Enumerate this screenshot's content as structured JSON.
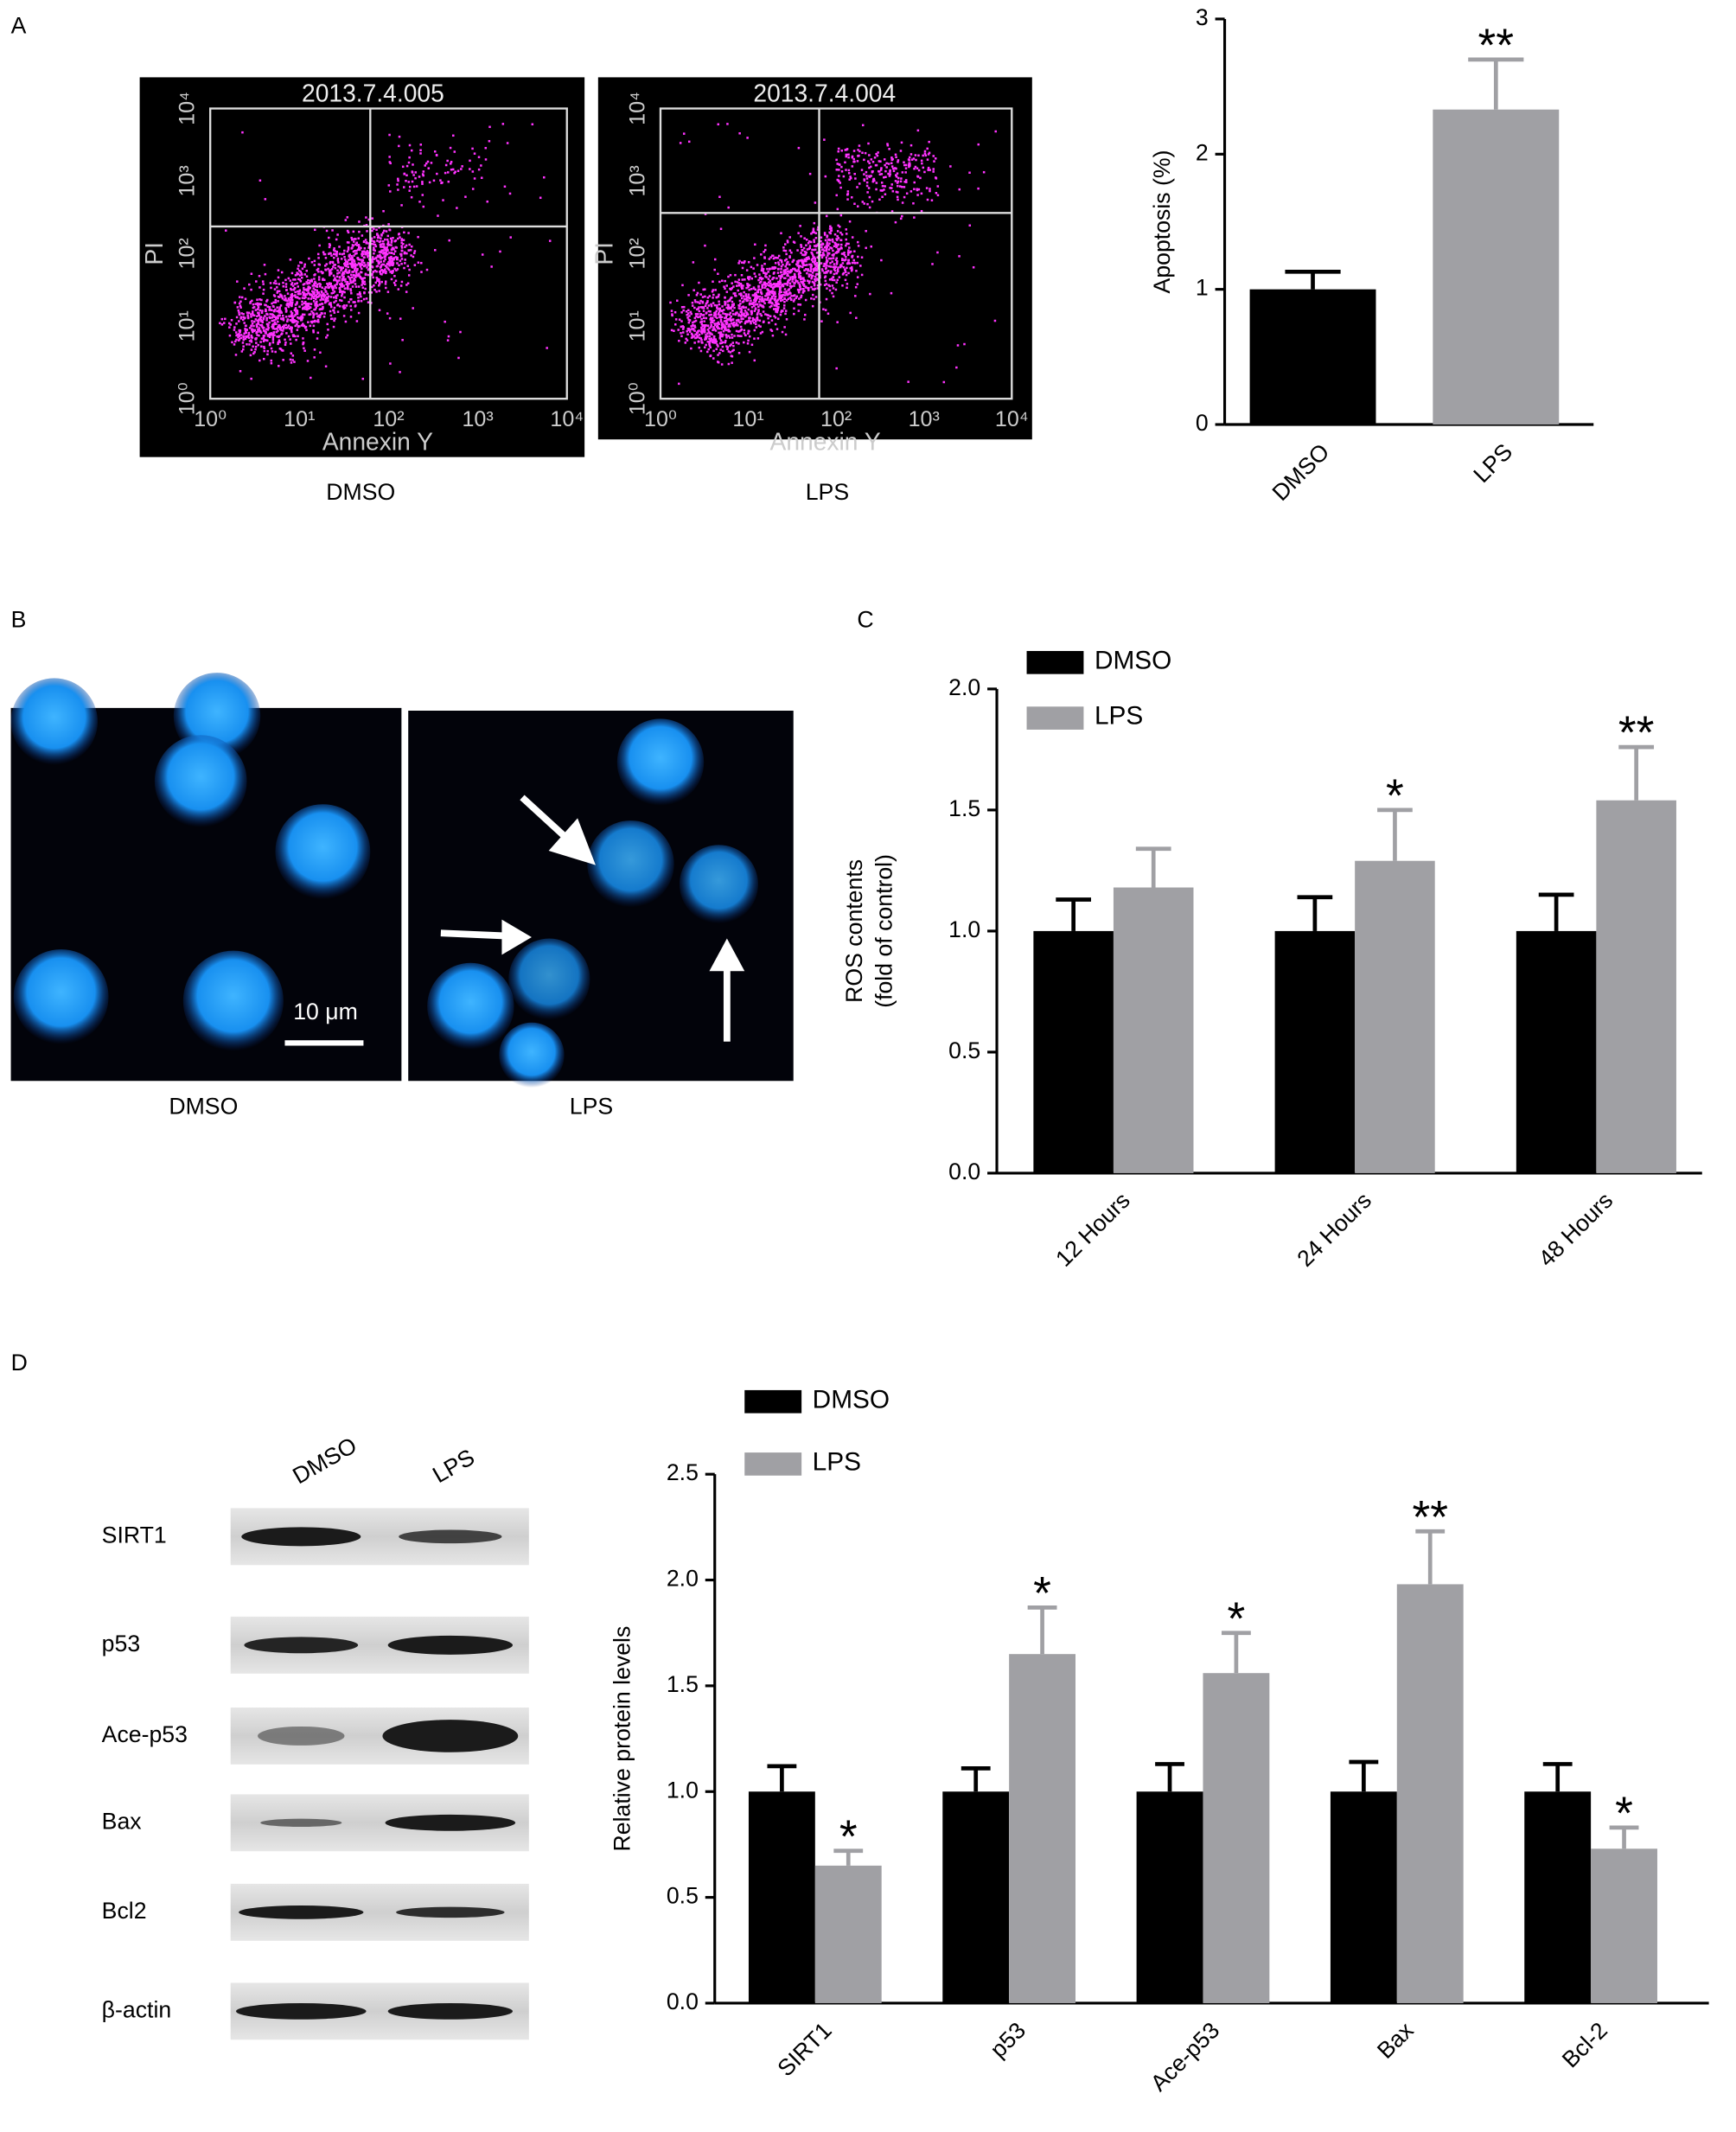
{
  "panel_labels": [
    "A",
    "B",
    "C",
    "D"
  ],
  "flow_cytometry": [
    {
      "title": "2013.7.4.005",
      "x_label": "Annexin Y",
      "y_label": "PI",
      "x_ticks": [
        "10⁰",
        "10¹",
        "10²",
        "10³",
        "10⁴"
      ],
      "y_ticks": [
        "10⁰",
        "10¹",
        "10²",
        "10³",
        "10⁴"
      ],
      "caption": "DMSO"
    },
    {
      "title": "2013.7.4.004",
      "x_label": "Annexin Y",
      "y_label": "PI",
      "x_ticks": [
        "10⁰",
        "10¹",
        "10²",
        "10³",
        "10⁴"
      ],
      "y_ticks": [
        "10⁰",
        "10¹",
        "10²",
        "10³",
        "10⁴"
      ],
      "caption": "LPS"
    }
  ],
  "microscopy": {
    "captions": [
      "DMSO",
      "LPS"
    ],
    "scale_bar": "10 μm"
  },
  "western_blot": {
    "lanes": [
      "DMSO",
      "LPS"
    ],
    "proteins": [
      "SIRT1",
      "p53",
      "Ace-p53",
      "Bax",
      "Bcl2",
      "β-actin"
    ]
  },
  "chart_data": [
    {
      "type": "bar",
      "ylabel": [
        "Apoptosis (%)"
      ],
      "categories": [
        "DMSO",
        "LPS"
      ],
      "values": [
        1.0,
        2.33
      ],
      "errors": [
        0.13,
        0.37
      ],
      "colors": [
        "#000000",
        "#a0a0a4"
      ],
      "annotations": [
        null,
        "**"
      ],
      "ylim": [
        0,
        3
      ],
      "yticks": [
        0,
        1,
        2,
        3
      ]
    },
    {
      "type": "bar",
      "ylabel": [
        "ROS  contents",
        "(fold of control)"
      ],
      "categories": [
        "12 Hours",
        "24 Hours",
        "48 Hours"
      ],
      "series": [
        {
          "name": "DMSO",
          "color": "#000000",
          "values": [
            1.0,
            1.0,
            1.0
          ],
          "errors": [
            0.13,
            0.14,
            0.15
          ],
          "annotations": [
            null,
            null,
            null
          ]
        },
        {
          "name": "LPS",
          "color": "#a0a0a4",
          "values": [
            1.18,
            1.29,
            1.54
          ],
          "errors": [
            0.16,
            0.21,
            0.22
          ],
          "annotations": [
            null,
            "*",
            "**"
          ]
        }
      ],
      "ylim": [
        0,
        2.0
      ],
      "yticks": [
        {
          "value": 0,
          "label": "0.0"
        },
        0.5,
        {
          "value": 1,
          "label": "1.0"
        },
        1.5,
        {
          "value": 2,
          "label": "2.0"
        }
      ]
    },
    {
      "type": "bar",
      "ylabel": [
        "Relative protein levels"
      ],
      "categories": [
        "SIRT1",
        "p53",
        "Ace-p53",
        "Bax",
        "Bcl-2"
      ],
      "series": [
        {
          "name": "DMSO",
          "color": "#000000",
          "values": [
            1.0,
            1.0,
            1.0,
            1.0,
            1.0
          ],
          "errors": [
            0.12,
            0.11,
            0.13,
            0.14,
            0.13
          ],
          "annotations": [
            null,
            null,
            null,
            null,
            null
          ]
        },
        {
          "name": "LPS",
          "color": "#a0a0a4",
          "values": [
            0.65,
            1.65,
            1.56,
            1.98,
            0.73
          ],
          "errors": [
            0.07,
            0.22,
            0.19,
            0.25,
            0.1
          ],
          "annotations": [
            "*",
            "*",
            "*",
            "**",
            "*"
          ]
        }
      ],
      "ylim": [
        0,
        2.5
      ],
      "yticks": [
        {
          "value": 0,
          "label": "0.0"
        },
        0.5,
        {
          "value": 1,
          "label": "1.0"
        },
        1.5,
        {
          "value": 2,
          "label": "2.0"
        },
        2.5
      ]
    }
  ]
}
